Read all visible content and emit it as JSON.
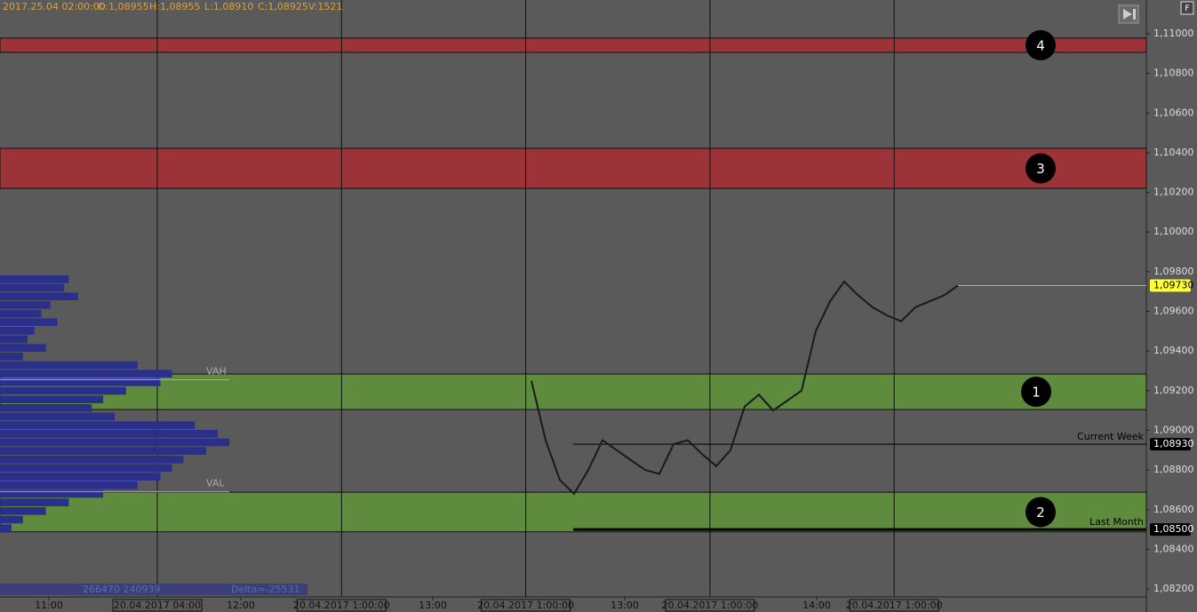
{
  "header": {
    "date": "2017.25.04 02:00:00",
    "open": "O:1,08955",
    "high": "H:1,08955",
    "low": "L:1,08910",
    "close": "C:1,08925",
    "volume": "V:1521"
  },
  "button_f": "F",
  "ylim": [
    1.0816,
    1.1117
  ],
  "yticks": [
    {
      "value": 1.11,
      "label": "1,11000"
    },
    {
      "value": 1.108,
      "label": "1,10800"
    },
    {
      "value": 1.106,
      "label": "1,10600"
    },
    {
      "value": 1.104,
      "label": "1,10400"
    },
    {
      "value": 1.102,
      "label": "1,10200"
    },
    {
      "value": 1.1,
      "label": "1,10000"
    },
    {
      "value": 1.098,
      "label": "1,09800"
    },
    {
      "value": 1.096,
      "label": "1,09600"
    },
    {
      "value": 1.094,
      "label": "1,09400"
    },
    {
      "value": 1.092,
      "label": "1,09200"
    },
    {
      "value": 1.09,
      "label": "1,09000"
    },
    {
      "value": 1.088,
      "label": "1,08800"
    },
    {
      "value": 1.086,
      "label": "1,08600"
    },
    {
      "value": 1.084,
      "label": "1,08400"
    },
    {
      "value": 1.082,
      "label": "1,08200"
    }
  ],
  "zones": [
    {
      "label": "4",
      "color": "#9b3338",
      "top": 1.10978,
      "bottom": 1.10906
    },
    {
      "label": "3",
      "color": "#9b3338",
      "top": 1.10422,
      "bottom": 1.1022
    },
    {
      "label": "1",
      "color": "#5e8b3e",
      "top": 1.09284,
      "bottom": 1.09105
    },
    {
      "label": "2",
      "color": "#5e8b3e",
      "top": 1.08688,
      "bottom": 1.08488
    }
  ],
  "value_area": [
    {
      "label": "VAH",
      "value": 1.09255
    },
    {
      "label": "VAL",
      "value": 1.0869
    }
  ],
  "levels": [
    {
      "name": "Current Week",
      "value": 1.0893,
      "label": "1,08930",
      "width": 1
    },
    {
      "name": "Last Month",
      "value": 1.085,
      "label": "1,08500",
      "width": 3
    }
  ],
  "last_price": {
    "value": 1.0973,
    "label": "1,09730",
    "color": "#ffff33"
  },
  "price": {
    "color": "#1a1a1a",
    "values": [
      1.0925,
      1.0895,
      1.0875,
      1.0868,
      1.088,
      1.0895,
      1.089,
      1.0885,
      1.088,
      1.0878,
      1.0893,
      1.0895,
      1.0888,
      1.0882,
      1.089,
      1.0912,
      1.0918,
      1.091,
      1.0915,
      1.092,
      1.095,
      1.0965,
      1.0975,
      1.0968,
      1.0962,
      1.0958,
      1.0955,
      1.0962,
      1.0965,
      1.0968,
      1.0973
    ]
  },
  "volume_profile": {
    "color": "#2a2f8a",
    "values": [
      30,
      28,
      34,
      22,
      18,
      25,
      15,
      12,
      20,
      10,
      60,
      75,
      70,
      55,
      45,
      40,
      50,
      85,
      95,
      100,
      90,
      80,
      75,
      70,
      60,
      45,
      30,
      20,
      10,
      5
    ]
  },
  "time_labels": [
    "11:00",
    "12:00",
    "13:00",
    "13:00",
    "14:00"
  ],
  "session_labels": [
    "20.04.2017 04:00",
    "20.04.2017 1:00:00",
    "20.04.2017 1:00:00",
    "20.04.2017 1:00:00",
    "20.04.2017 1:00:00"
  ],
  "footer": {
    "volumes": "266470 240939",
    "delta": "Delta=-25531"
  }
}
